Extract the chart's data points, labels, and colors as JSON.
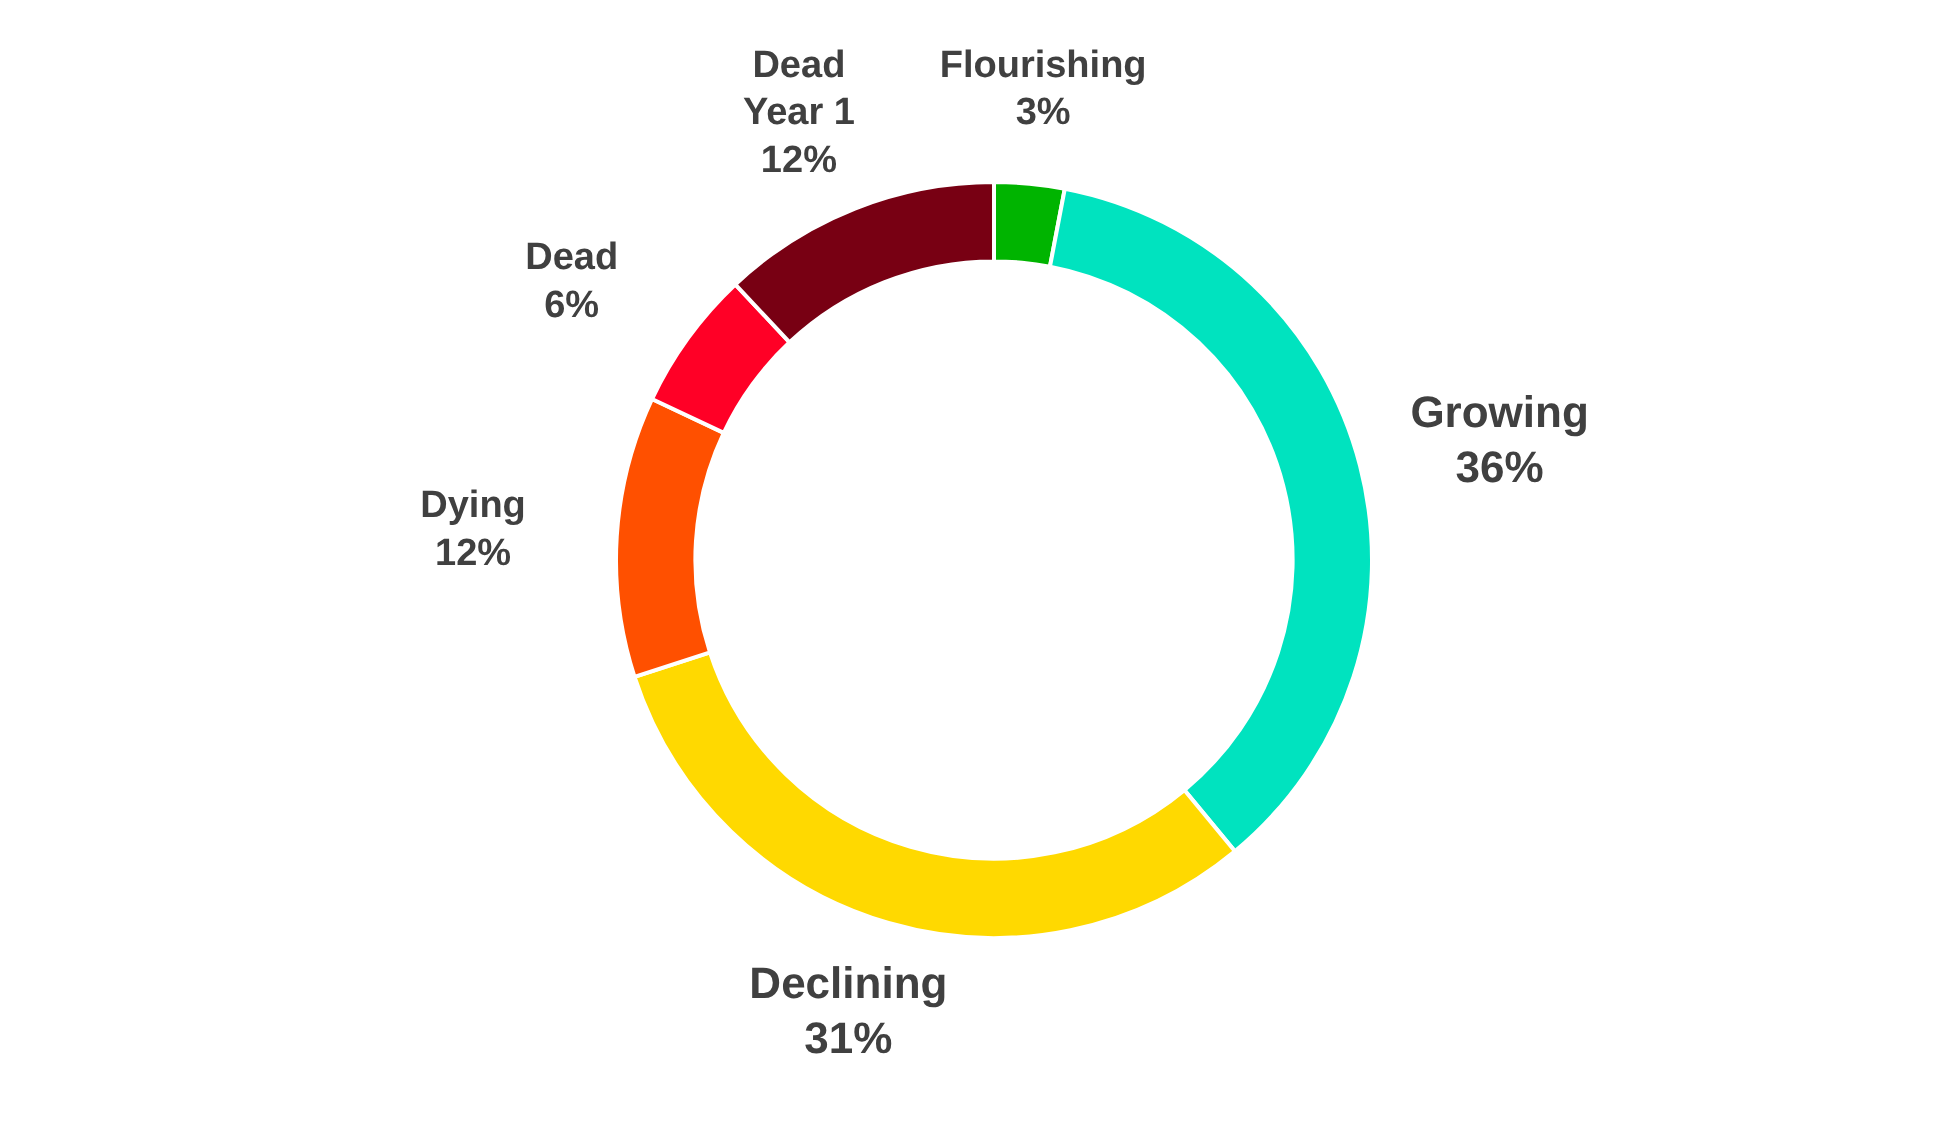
{
  "chart_data": {
    "type": "donut",
    "categories": [
      "Flourishing",
      "Growing",
      "Declining",
      "Dying",
      "Dead",
      "Dead Year 1"
    ],
    "values": [
      3,
      36,
      31,
      12,
      6,
      12
    ],
    "value_labels": [
      "3%",
      "36%",
      "31%",
      "12%",
      "6%",
      "12%"
    ],
    "colors": [
      "#00b400",
      "#00e3bf",
      "#ffd900",
      "#ff5000",
      "#ff0026",
      "#780013"
    ],
    "legend": false
  }
}
